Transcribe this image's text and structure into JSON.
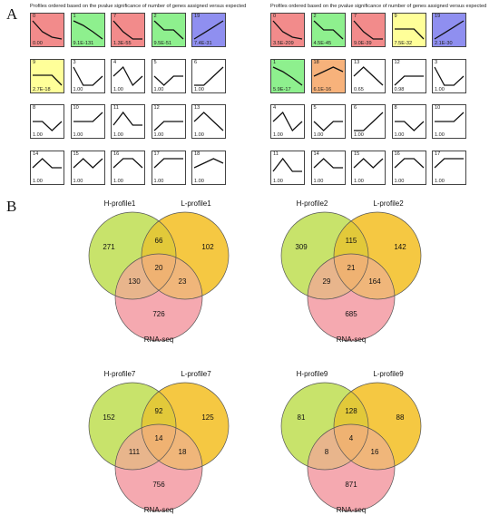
{
  "panel_a": {
    "label": "A",
    "colors": {
      "red": "#f28b8b",
      "green": "#8ef08e",
      "yellow": "#ffff99",
      "blue": "#8f8ff0",
      "orange": "#f7b27b",
      "white": "#ffffff"
    },
    "grids": [
      {
        "title": "Profiles ordered based on the pvalue significance of number of genes assigned versus expected",
        "cells": [
          {
            "id": "0",
            "pval": "0.00",
            "color": "red",
            "shape": [
              1,
              0.4,
              0.1,
              0
            ]
          },
          {
            "id": "1",
            "pval": "9.1E-131",
            "color": "green",
            "shape": [
              1,
              0.75,
              0.4,
              0
            ]
          },
          {
            "id": "7",
            "pval": "1.3E-55",
            "color": "red",
            "shape": [
              1,
              0.4,
              0,
              0
            ]
          },
          {
            "id": "2",
            "pval": "9.5E-51",
            "color": "green",
            "shape": [
              1,
              0.5,
              0.5,
              0
            ]
          },
          {
            "id": "19",
            "pval": "7.4E-31",
            "color": "blue",
            "shape": [
              0,
              0.33,
              0.66,
              1
            ]
          },
          {
            "id": "9",
            "pval": "2.7E-18",
            "color": "yellow",
            "shape": [
              0.55,
              0.55,
              0.55,
              0
            ]
          },
          {
            "id": "3",
            "pval": "1.00",
            "color": "white",
            "shape": [
              1,
              0,
              0,
              0.5
            ]
          },
          {
            "id": "4",
            "pval": "1.00",
            "color": "white",
            "shape": [
              0.5,
              1,
              0,
              0.5
            ]
          },
          {
            "id": "5",
            "pval": "1.00",
            "color": "white",
            "shape": [
              0.5,
              0,
              0.5,
              0.5
            ]
          },
          {
            "id": "6",
            "pval": "1.00",
            "color": "white",
            "shape": [
              0,
              0,
              0.5,
              1
            ]
          },
          {
            "id": "8",
            "pval": "1.00",
            "color": "white",
            "shape": [
              0.5,
              0.5,
              0,
              0.5
            ]
          },
          {
            "id": "10",
            "pval": "1.00",
            "color": "white",
            "shape": [
              0.5,
              0.5,
              0.5,
              1
            ]
          },
          {
            "id": "11",
            "pval": "1.00",
            "color": "white",
            "shape": [
              0.3,
              1,
              0.3,
              0.3
            ]
          },
          {
            "id": "12",
            "pval": "1.00",
            "color": "white",
            "shape": [
              0,
              0.5,
              0.5,
              0.5
            ]
          },
          {
            "id": "13",
            "pval": "1.00",
            "color": "white",
            "shape": [
              0.5,
              1,
              0.5,
              0
            ]
          },
          {
            "id": "14",
            "pval": "1.00",
            "color": "white",
            "shape": [
              0.5,
              1,
              0.5,
              0.5
            ]
          },
          {
            "id": "15",
            "pval": "1.00",
            "color": "white",
            "shape": [
              0.5,
              1,
              0.5,
              1
            ]
          },
          {
            "id": "16",
            "pval": "1.00",
            "color": "white",
            "shape": [
              0.5,
              1,
              1,
              0.5
            ]
          },
          {
            "id": "17",
            "pval": "1.00",
            "color": "white",
            "shape": [
              0.5,
              1,
              1,
              1
            ]
          },
          {
            "id": "18",
            "pval": "1.00",
            "color": "white",
            "shape": [
              0.5,
              0.75,
              1,
              0.75
            ]
          }
        ]
      },
      {
        "title": "Profiles ordered based on the pvalue significance of number of genes assigned versus expected",
        "cells": [
          {
            "id": "0",
            "pval": "3.5E-209",
            "color": "red",
            "shape": [
              1,
              0.4,
              0.1,
              0
            ]
          },
          {
            "id": "2",
            "pval": "4.5E-45",
            "color": "green",
            "shape": [
              1,
              0.5,
              0.5,
              0
            ]
          },
          {
            "id": "7",
            "pval": "9.0E-39",
            "color": "red",
            "shape": [
              1,
              0.4,
              0,
              0
            ]
          },
          {
            "id": "9",
            "pval": "7.5E-32",
            "color": "yellow",
            "shape": [
              0.55,
              0.55,
              0.55,
              0
            ]
          },
          {
            "id": "19",
            "pval": "2.1E-30",
            "color": "blue",
            "shape": [
              0,
              0.33,
              0.66,
              1
            ]
          },
          {
            "id": "1",
            "pval": "5.9E-17",
            "color": "green",
            "shape": [
              1,
              0.75,
              0.4,
              0
            ]
          },
          {
            "id": "18",
            "pval": "6.1E-16",
            "color": "orange",
            "shape": [
              0.5,
              0.75,
              1,
              0.75
            ]
          },
          {
            "id": "13",
            "pval": "0.65",
            "color": "white",
            "shape": [
              0.5,
              1,
              0.5,
              0
            ]
          },
          {
            "id": "12",
            "pval": "0.98",
            "color": "white",
            "shape": [
              0,
              0.5,
              0.5,
              0.5
            ]
          },
          {
            "id": "3",
            "pval": "1.00",
            "color": "white",
            "shape": [
              1,
              0,
              0,
              0.5
            ]
          },
          {
            "id": "4",
            "pval": "1.00",
            "color": "white",
            "shape": [
              0.5,
              1,
              0,
              0.5
            ]
          },
          {
            "id": "5",
            "pval": "1.00",
            "color": "white",
            "shape": [
              0.5,
              0,
              0.5,
              0.5
            ]
          },
          {
            "id": "6",
            "pval": "1.00",
            "color": "white",
            "shape": [
              0,
              0,
              0.5,
              1
            ]
          },
          {
            "id": "8",
            "pval": "1.00",
            "color": "white",
            "shape": [
              0.5,
              0.5,
              0,
              0.5
            ]
          },
          {
            "id": "10",
            "pval": "1.00",
            "color": "white",
            "shape": [
              0.5,
              0.5,
              0.5,
              1
            ]
          },
          {
            "id": "11",
            "pval": "1.00",
            "color": "white",
            "shape": [
              0.3,
              1,
              0.3,
              0.3
            ]
          },
          {
            "id": "14",
            "pval": "1.00",
            "color": "white",
            "shape": [
              0.5,
              1,
              0.5,
              0.5
            ]
          },
          {
            "id": "15",
            "pval": "1.00",
            "color": "white",
            "shape": [
              0.5,
              1,
              0.5,
              1
            ]
          },
          {
            "id": "16",
            "pval": "1.00",
            "color": "white",
            "shape": [
              0.5,
              1,
              1,
              0.5
            ]
          },
          {
            "id": "17",
            "pval": "1.00",
            "color": "white",
            "shape": [
              0.5,
              1,
              1,
              1
            ]
          }
        ]
      }
    ]
  },
  "panel_b": {
    "label": "B",
    "colors": {
      "h": "#c8e36b",
      "l": "#f5c842",
      "rna": "#f5a9b0",
      "hl": "#e2c93a",
      "hr": "#e8b58c",
      "lr": "#f0b67a",
      "hlr": "#efb272"
    },
    "venns": [
      {
        "h_label": "H-profile1",
        "l_label": "L-profile1",
        "rna_label": "RNA-seq",
        "h_only": "271",
        "l_only": "102",
        "r_only": "726",
        "hl": "66",
        "hr": "130",
        "lr": "23",
        "hlr": "20"
      },
      {
        "h_label": "H-profile2",
        "l_label": "L-profile2",
        "rna_label": "RNA-seq",
        "h_only": "309",
        "l_only": "142",
        "r_only": "685",
        "hl": "115",
        "hr": "29",
        "lr": "164",
        "hlr": "21"
      },
      {
        "h_label": "H-profile7",
        "l_label": "L-profile7",
        "rna_label": "RNA-seq",
        "h_only": "152",
        "l_only": "125",
        "r_only": "756",
        "hl": "92",
        "hr": "111",
        "lr": "18",
        "hlr": "14"
      },
      {
        "h_label": "H-profile9",
        "l_label": "L-profile9",
        "rna_label": "RNA-seq",
        "h_only": "81",
        "l_only": "88",
        "r_only": "871",
        "hl": "128",
        "hr": "8",
        "lr": "16",
        "hlr": "4"
      }
    ]
  }
}
